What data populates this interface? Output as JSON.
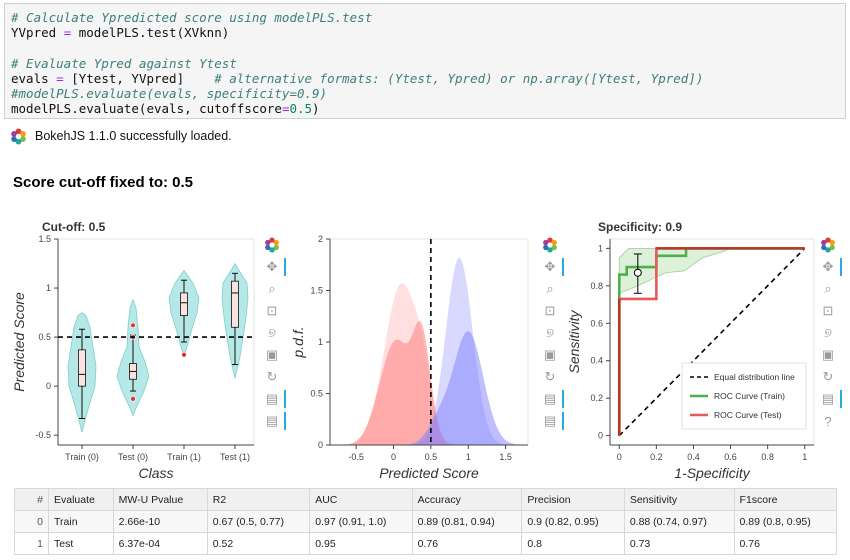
{
  "code": {
    "line1": "# Calculate Ypredicted score using modelPLS.test",
    "line2a": "YVpred ",
    "line2b": "=",
    "line2c": " modelPLS.test(XVknn)",
    "line4": "# Evaluate Ypred against Ytest",
    "line5a": "evals ",
    "line5b": "=",
    "line5c": " [Ytest, YVpred]    ",
    "line5d": "# alternative formats: (Ytest, Ypred) or np.array([Ytest, Ypred])",
    "line6": "#modelPLS.evaluate(evals, specificity=0.9)",
    "line7a": "modelPLS.evaluate(evals, cutoffscore",
    "line7b": "=",
    "line7c": "0.5",
    "line7d": ")"
  },
  "bokeh_status": "BokehJS 1.1.0 successfully loaded.",
  "heading": "Score cut-off fixed to: 0.5",
  "colors": {
    "teal_fill": "#b5e8e6",
    "red": "#ff7f7f",
    "blue": "#8080ff",
    "green": "#4db04a",
    "roc_test": "#e85a5a",
    "ref": "#000000"
  },
  "chart_data": [
    {
      "type": "violin",
      "title": "Cut-off: 0.5",
      "xlabel": "Class",
      "ylabel": "Predicted Score",
      "categories": [
        "Train (0)",
        "Test (0)",
        "Train (1)",
        "Test (1)"
      ],
      "ylim": [
        -0.6,
        1.5
      ],
      "yticks": [
        "-0.5",
        "0",
        "0.5",
        "1",
        "1.5"
      ],
      "cutoff": 0.5,
      "boxes": [
        {
          "q1": 0.0,
          "median": 0.12,
          "q3": 0.37,
          "min": -0.33,
          "max": 0.58
        },
        {
          "q1": 0.07,
          "median": 0.15,
          "q3": 0.23,
          "min": -0.05,
          "max": 0.52
        },
        {
          "q1": 0.72,
          "median": 0.85,
          "q3": 0.95,
          "min": 0.45,
          "max": 1.08
        },
        {
          "q1": 0.6,
          "median": 0.95,
          "q3": 1.07,
          "min": 0.22,
          "max": 1.15
        }
      ],
      "outliers": [
        [
          1,
          0.62
        ],
        [
          1,
          0.5
        ],
        [
          1,
          -0.13
        ],
        [
          2,
          0.32
        ]
      ]
    },
    {
      "type": "area",
      "xlabel": "Predicted Score",
      "ylabel": "p.d.f.",
      "xlim": [
        -0.85,
        1.8
      ],
      "ylim": [
        0,
        2
      ],
      "xticks": [
        "-0.5",
        "0",
        "0.5",
        "1",
        "1.5"
      ],
      "yticks": [
        "0",
        "0.5",
        "1",
        "1.5",
        "2"
      ],
      "cutoff": 0.5
    },
    {
      "type": "line",
      "title": "Specificity: 0.9",
      "xlabel": "1-Specificity",
      "ylabel": "Sensitivity",
      "xlim": [
        -0.05,
        1.05
      ],
      "ylim": [
        -0.05,
        1.05
      ],
      "xticks": [
        "0",
        "0.2",
        "0.4",
        "0.6",
        "0.8",
        "1"
      ],
      "yticks": [
        "0",
        "0.2",
        "0.4",
        "0.6",
        "0.8",
        "1"
      ],
      "legend": [
        "Equal distribution line",
        "ROC Curve (Train)",
        "ROC Curve (Test)"
      ],
      "train_roc": [
        [
          0,
          0
        ],
        [
          0,
          0.86
        ],
        [
          0.04,
          0.86
        ],
        [
          0.04,
          0.9
        ],
        [
          0.2,
          0.9
        ],
        [
          0.2,
          0.96
        ],
        [
          0.36,
          0.96
        ],
        [
          0.36,
          1
        ],
        [
          1,
          1
        ]
      ],
      "test_roc": [
        [
          0,
          0
        ],
        [
          0,
          0.73
        ],
        [
          0.2,
          0.73
        ],
        [
          0.2,
          1
        ],
        [
          1,
          1
        ]
      ],
      "point": [
        0.1,
        0.87,
        0.76,
        0.97
      ]
    }
  ],
  "table": {
    "headers": [
      "#",
      "Evaluate",
      "MW-U Pvalue",
      "R2",
      "AUC",
      "Accuracy",
      "Precision",
      "Sensitivity",
      "F1score"
    ],
    "rows": [
      [
        "0",
        "Train",
        "2.66e-10",
        "0.67 (0.5, 0.77)",
        "0.97 (0.91, 1.0)",
        "0.89 (0.81, 0.94)",
        "0.9 (0.82, 0.95)",
        "0.88 (0.74, 0.97)",
        "0.89 (0.8, 0.95)"
      ],
      [
        "1",
        "Test",
        "6.37e-04",
        "0.52",
        "0.95",
        "0.76",
        "0.8",
        "0.73",
        "0.76"
      ]
    ]
  }
}
